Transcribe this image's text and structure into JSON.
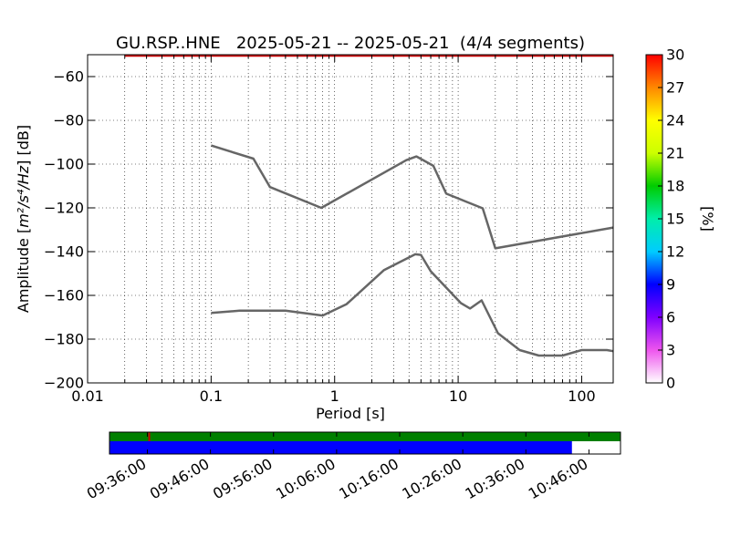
{
  "chart_data": {
    "type": "line",
    "title": "GU.RSP..HNE   2025-05-21 -- 2025-05-21  (4/4 segments)",
    "xlabel": "Period [s]",
    "ylabel_prefix": "Amplitude [",
    "ylabel_math": "m²/s⁴/Hz",
    "ylabel_suffix": "] [dB]",
    "x_scale": "log",
    "xlim": [
      0.01,
      180
    ],
    "ylim": [
      -200,
      -50
    ],
    "x_ticks": [
      {
        "value": 0.01,
        "label": "0.01"
      },
      {
        "value": 0.1,
        "label": "0.1"
      },
      {
        "value": 1,
        "label": "1"
      },
      {
        "value": 10,
        "label": "10"
      },
      {
        "value": 100,
        "label": "100"
      }
    ],
    "y_ticks": [
      {
        "value": -60,
        "label": "−60"
      },
      {
        "value": -80,
        "label": "−80"
      },
      {
        "value": -100,
        "label": "−100"
      },
      {
        "value": -120,
        "label": "−120"
      },
      {
        "value": -140,
        "label": "−140"
      },
      {
        "value": -160,
        "label": "−160"
      },
      {
        "value": -180,
        "label": "−180"
      },
      {
        "value": -200,
        "label": "−200"
      }
    ],
    "grid": true,
    "series": [
      {
        "color": "#666666",
        "points": [
          [
            0.1,
            -91.5
          ],
          [
            0.22,
            -97.5
          ],
          [
            0.3,
            -110.5
          ],
          [
            0.78,
            -120
          ],
          [
            3.8,
            -98.2
          ],
          [
            4.6,
            -96.5
          ],
          [
            6.3,
            -100.8
          ],
          [
            8.0,
            -113.5
          ],
          [
            15.8,
            -120.2
          ],
          [
            20.0,
            -138.5
          ],
          [
            180,
            -129
          ]
        ]
      },
      {
        "color": "#666666",
        "points": [
          [
            0.1,
            -168
          ],
          [
            0.17,
            -167
          ],
          [
            0.4,
            -167
          ],
          [
            0.8,
            -169.2
          ],
          [
            1.25,
            -164
          ],
          [
            2.5,
            -148.5
          ],
          [
            4.5,
            -141.2
          ],
          [
            5.0,
            -141.5
          ],
          [
            6.0,
            -149
          ],
          [
            10.5,
            -163.5
          ],
          [
            12.5,
            -166
          ],
          [
            15.5,
            -162.3
          ],
          [
            21,
            -177.3
          ],
          [
            31.5,
            -185
          ],
          [
            45,
            -187.5
          ],
          [
            70,
            -187.5
          ],
          [
            100,
            -185
          ],
          [
            160,
            -185
          ],
          [
            180,
            -185.5
          ]
        ]
      }
    ],
    "top_line": {
      "color": "#cc0000",
      "x_start": 0.02,
      "x_end": 180,
      "y": -50.5
    },
    "colorbar": {
      "label": "[%]",
      "min": 0,
      "max": 30,
      "ticks": [
        "0",
        "3",
        "6",
        "9",
        "12",
        "15",
        "18",
        "21",
        "24",
        "27",
        "30"
      ]
    },
    "timeline": {
      "start": "09:30:00",
      "end": "10:51:00",
      "tick_labels": [
        "09:36:00",
        "09:46:00",
        "09:56:00",
        "10:06:00",
        "10:16:00",
        "10:26:00",
        "10:36:00",
        "10:46:00"
      ],
      "tick_minutes": [
        6,
        16,
        26,
        36,
        46,
        56,
        66,
        76
      ],
      "total_minutes": 81,
      "green_bar": {
        "start_min": 0,
        "end_min": 81,
        "color": "#007f00"
      },
      "red_mark": {
        "at_min": 6.3,
        "color": "#cc0000"
      },
      "blue_bar": {
        "start_min": 0,
        "end_min": 73.3,
        "color": "#0000ff"
      }
    }
  }
}
